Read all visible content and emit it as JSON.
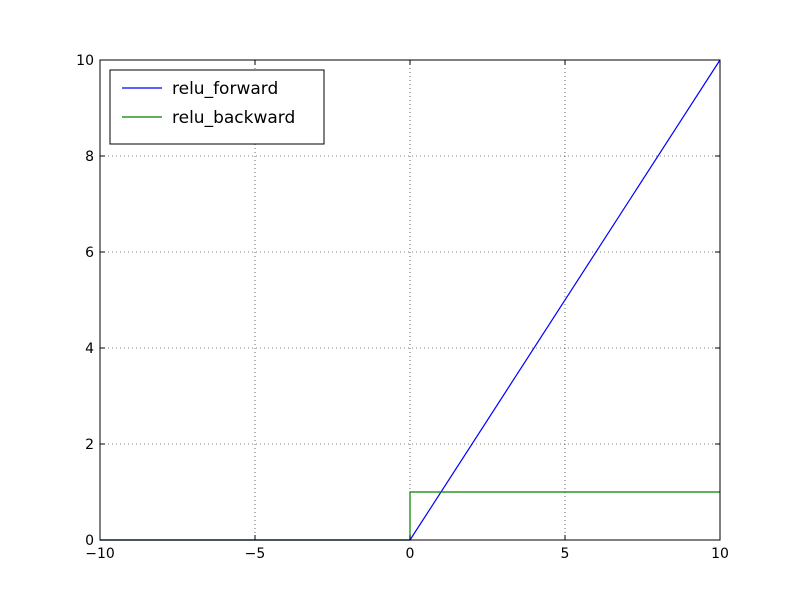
{
  "chart_data": {
    "type": "line",
    "title": "",
    "xlabel": "",
    "ylabel": "",
    "xlim": [
      -10,
      10
    ],
    "ylim": [
      0,
      10
    ],
    "x_ticks": [
      -10,
      -5,
      0,
      5,
      10
    ],
    "y_ticks": [
      0,
      2,
      4,
      6,
      8,
      10
    ],
    "x_tick_labels": [
      "−10",
      "−5",
      "0",
      "5",
      "10"
    ],
    "y_tick_labels": [
      "0",
      "2",
      "4",
      "6",
      "8",
      "10"
    ],
    "grid": true,
    "legend_position": "top-left",
    "series": [
      {
        "name": "relu_forward",
        "color": "#0000ff",
        "points": [
          [
            -10,
            0
          ],
          [
            0,
            0
          ],
          [
            10,
            10
          ]
        ]
      },
      {
        "name": "relu_backward",
        "color": "#008000",
        "points": [
          [
            -10,
            0
          ],
          [
            0,
            0
          ],
          [
            0,
            1
          ],
          [
            10,
            1
          ]
        ]
      }
    ]
  }
}
